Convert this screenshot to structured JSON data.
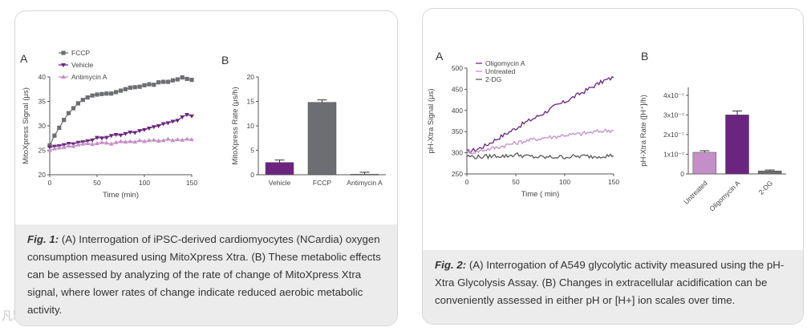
{
  "fig1": {
    "caption_label": "Fig. 1:",
    "caption_text": " (A) Interrogation of iPSC-derived cardiomyocytes (NCardia) oxygen consumption measured using MitoXpress Xtra. (B) These metabolic effects can be assessed by analyzing of the rate of change of MitoXpress Xtra signal, where lower rates of change indicate reduced aerobic metabolic activity."
  },
  "fig2": {
    "caption_label": "Fig. 2:",
    "caption_text": " (A) Interrogation of A549 glycolytic activity measured using the pH-Xtra Glycolysis Assay. (B) Changes in extracellular acidification can be conveniently assessed in either pH or [H+] ion scales over time."
  },
  "watermark": "凡默谷小站",
  "chart_data": [
    {
      "id": "fig1A",
      "panel_label": "A",
      "type": "line",
      "xlabel": "Time (min)",
      "ylabel": "MitoXpress Signal (μs)",
      "xlim": [
        0,
        150
      ],
      "ylim": [
        20,
        40
      ],
      "xticks": [
        "0",
        "50",
        "100",
        "150"
      ],
      "yticks": [
        "20",
        "25",
        "30",
        "35",
        "40"
      ],
      "legend_position": "top-left",
      "series": [
        {
          "name": "FCCP",
          "color": "#6d6e71",
          "marker": "square",
          "x": [
            0,
            5,
            10,
            15,
            20,
            25,
            30,
            35,
            40,
            45,
            50,
            55,
            60,
            65,
            70,
            75,
            80,
            85,
            90,
            95,
            100,
            105,
            110,
            115,
            120,
            125,
            130,
            135,
            140,
            145,
            150
          ],
          "y": [
            26.0,
            28.0,
            29.6,
            31.2,
            32.6,
            33.6,
            34.6,
            35.3,
            35.8,
            36.2,
            36.4,
            36.5,
            36.6,
            36.6,
            36.9,
            37.2,
            37.5,
            37.8,
            37.9,
            38.0,
            38.3,
            38.5,
            38.4,
            38.9,
            39.0,
            39.0,
            39.3,
            39.5,
            39.9,
            39.6,
            39.4
          ]
        },
        {
          "name": "Vehicle",
          "color": "#6b2580",
          "marker": "triangle-down",
          "x": [
            0,
            5,
            10,
            15,
            20,
            25,
            30,
            35,
            40,
            45,
            50,
            55,
            60,
            65,
            70,
            75,
            80,
            85,
            90,
            95,
            100,
            105,
            110,
            115,
            120,
            125,
            130,
            135,
            140,
            145,
            150
          ],
          "y": [
            25.6,
            25.8,
            25.9,
            26.1,
            26.4,
            26.3,
            26.6,
            26.7,
            26.9,
            27.1,
            27.6,
            27.5,
            27.6,
            28.0,
            28.2,
            28.1,
            28.4,
            28.7,
            28.6,
            29.0,
            29.2,
            29.5,
            29.8,
            30.0,
            30.4,
            30.6,
            30.9,
            31.1,
            31.8,
            32.3,
            32.0
          ]
        },
        {
          "name": "Antimycin A",
          "color": "#c48fc8",
          "marker": "triangle-up",
          "x": [
            0,
            5,
            10,
            15,
            20,
            25,
            30,
            35,
            40,
            45,
            50,
            55,
            60,
            65,
            70,
            75,
            80,
            85,
            90,
            95,
            100,
            105,
            110,
            115,
            120,
            125,
            130,
            135,
            140,
            145,
            150
          ],
          "y": [
            25.0,
            25.3,
            25.5,
            25.6,
            25.9,
            25.8,
            26.1,
            26.3,
            26.4,
            26.2,
            26.4,
            26.6,
            26.5,
            26.3,
            26.6,
            26.8,
            26.7,
            26.8,
            26.7,
            27.0,
            26.8,
            27.0,
            27.1,
            26.9,
            27.0,
            27.3,
            27.0,
            27.2,
            27.1,
            27.3,
            27.2
          ]
        }
      ]
    },
    {
      "id": "fig1B",
      "panel_label": "B",
      "type": "bar",
      "ylabel": "MitoXpress Rate (μs/h)",
      "ylim": [
        0,
        20
      ],
      "yticks": [
        "0",
        "5",
        "10",
        "15",
        "20"
      ],
      "categories": [
        "Vehicle",
        "FCCP",
        "Antimycin A"
      ],
      "values": [
        2.5,
        14.8,
        0.1
      ],
      "errors": [
        0.5,
        0.5,
        0.4
      ],
      "colors": [
        "#6b2580",
        "#6d6e71",
        "#6d6e71"
      ]
    },
    {
      "id": "fig2A",
      "panel_label": "A",
      "type": "line",
      "xlabel": "Time ( min)",
      "ylabel": "pH-Xtra Signal (μs)",
      "xlim": [
        0,
        150
      ],
      "ylim": [
        250,
        500
      ],
      "xticks": [
        "0",
        "50",
        "100",
        "150"
      ],
      "yticks": [
        "250",
        "300",
        "350",
        "400",
        "450",
        "500"
      ],
      "legend_position": "top-left",
      "series": [
        {
          "name": "Oligomycin A",
          "color": "#6b2580",
          "x": [
            0,
            10,
            20,
            30,
            40,
            50,
            60,
            70,
            80,
            90,
            100,
            110,
            120,
            130,
            140,
            150
          ],
          "y": [
            302,
            308,
            318,
            332,
            345,
            358,
            372,
            383,
            396,
            410,
            420,
            433,
            445,
            458,
            470,
            478
          ]
        },
        {
          "name": "Untreated",
          "color": "#c48fc8",
          "x": [
            0,
            10,
            20,
            30,
            40,
            50,
            60,
            70,
            80,
            90,
            100,
            110,
            120,
            130,
            140,
            150
          ],
          "y": [
            300,
            303,
            308,
            312,
            318,
            323,
            328,
            332,
            336,
            338,
            342,
            343,
            346,
            349,
            352,
            353
          ]
        },
        {
          "name": "2-DG",
          "color": "#58595b",
          "x": [
            0,
            10,
            20,
            30,
            40,
            50,
            60,
            70,
            80,
            90,
            100,
            110,
            120,
            130,
            140,
            150
          ],
          "y": [
            292,
            290,
            291,
            293,
            292,
            296,
            292,
            290,
            289,
            290,
            290,
            291,
            292,
            291,
            293,
            293
          ]
        }
      ]
    },
    {
      "id": "fig2B",
      "panel_label": "B",
      "type": "bar",
      "ylabel": "pH-Xtra Rate ([H⁺]/h)",
      "ylim": [
        0,
        4.4
      ],
      "yticks": [
        "0",
        "1x10⁻⁷",
        "2x10⁻⁷",
        "3x10⁻⁷",
        "4x10⁻⁷"
      ],
      "categories": [
        "Untreated",
        "Oligomycin A",
        "2-DG"
      ],
      "values": [
        1.1,
        3.0,
        0.15
      ],
      "errors": [
        0.08,
        0.2,
        0.05
      ],
      "colors": [
        "#c48fc8",
        "#6b2580",
        "#6d6e71"
      ]
    }
  ]
}
